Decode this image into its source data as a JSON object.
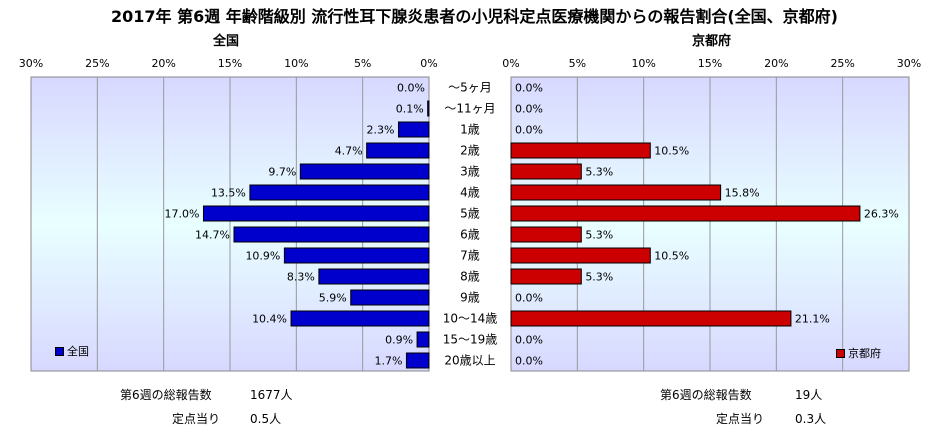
{
  "title": "2017年 第6週 年齢階級別 流行性耳下腺炎患者の小児科定点医療機関からの報告割合(全国、京都府)",
  "panels": {
    "left_title": "全国",
    "right_title": "京都府"
  },
  "legend": {
    "left": "全国",
    "right": "京都府"
  },
  "footer": {
    "left_total_label": "第6週の総報告数",
    "left_total_value": "1677人",
    "left_per_label": "定点当り",
    "left_per_value": "0.5人",
    "right_total_label": "第6週の総報告数",
    "right_total_value": "19人",
    "right_per_label": "定点当り",
    "right_per_value": "0.3人"
  },
  "colors": {
    "national": "#0000cc",
    "kyoto": "#cc0000"
  },
  "chart_data": {
    "type": "bar",
    "orientation": "horizontal",
    "categories": [
      "～5ヶ月",
      "～11ヶ月",
      "1歳",
      "2歳",
      "3歳",
      "4歳",
      "5歳",
      "6歳",
      "7歳",
      "8歳",
      "9歳",
      "10～14歳",
      "15～19歳",
      "20歳以上"
    ],
    "series": [
      {
        "name": "全国",
        "values": [
          0.0,
          0.1,
          2.3,
          4.7,
          9.7,
          13.5,
          17.0,
          14.7,
          10.9,
          8.3,
          5.9,
          10.4,
          0.9,
          1.7
        ]
      },
      {
        "name": "京都府",
        "values": [
          0.0,
          0.0,
          0.0,
          10.5,
          5.3,
          15.8,
          26.3,
          5.3,
          10.5,
          5.3,
          0.0,
          21.1,
          0.0,
          0.0
        ]
      }
    ],
    "xlim": [
      0,
      30
    ],
    "ticks": [
      "30%",
      "25%",
      "20%",
      "15%",
      "10%",
      "5%",
      "0%"
    ],
    "ticks_right": [
      "0%",
      "5%",
      "10%",
      "15%",
      "20%",
      "25%",
      "30%"
    ],
    "value_suffix": "%",
    "grid": true
  }
}
